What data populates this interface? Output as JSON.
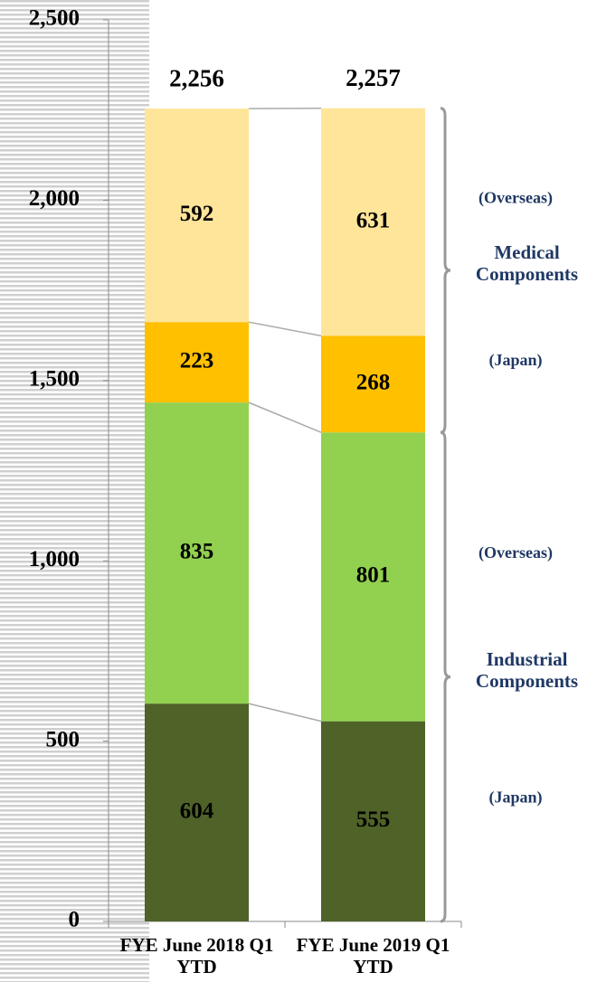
{
  "chart_data": {
    "type": "stacked_bar",
    "categories": [
      "FYE June 2018 Q1 YTD",
      "FYE June 2019 Q1 YTD"
    ],
    "series": [
      {
        "name": "(Japan)",
        "color": "#4f6228",
        "values": [
          604,
          555
        ]
      },
      {
        "name": "(Overseas)",
        "color": "#92d050",
        "values": [
          835,
          801
        ]
      },
      {
        "name": "(Japan)",
        "color": "#ffc000",
        "values": [
          223,
          268
        ]
      },
      {
        "name": "(Overseas)",
        "color": "#fee599",
        "values": [
          592,
          631
        ]
      }
    ],
    "totals": [
      2256,
      2257
    ],
    "total_labels": [
      "2,256",
      "2,257"
    ],
    "groups": [
      {
        "name": "Industrial Components"
      },
      {
        "name": "Medical Components"
      }
    ],
    "ylim": [
      0,
      2500
    ],
    "yticks": [
      0,
      500,
      {
        "value": 1000,
        "label": "1,000"
      },
      {
        "value": 1500,
        "label": "1,500"
      },
      {
        "value": 2000,
        "label": "2,000"
      },
      {
        "value": 2500,
        "label": "2,500"
      }
    ]
  }
}
